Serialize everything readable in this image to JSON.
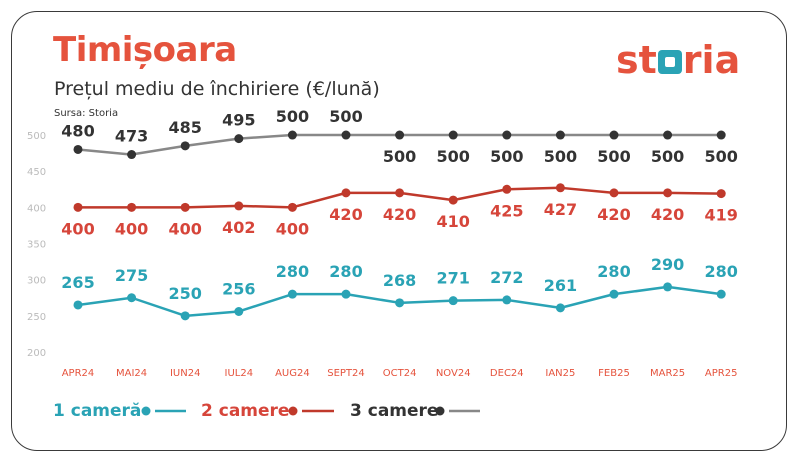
{
  "header": {
    "title": "Timișoara",
    "subtitle": "Prețul mediu de închiriere (€/lună)",
    "source": "Sursa: Storia",
    "logo_text_left": "st",
    "logo_text_right": "ria"
  },
  "colors": {
    "title": "#e5533d",
    "series_1": "#2aa3b5",
    "series_2": "#c0392b",
    "series_2_label": "#d6453a",
    "series_3": "#888888",
    "series_3_label": "#333333",
    "axis_text": "#bbbbbb",
    "category_text": "#e5533d"
  },
  "chart_data": {
    "type": "line",
    "categories": [
      "APR24",
      "MAI24",
      "IUN24",
      "IUL24",
      "AUG24",
      "SEPT24",
      "OCT24",
      "NOV24",
      "DEC24",
      "IAN25",
      "FEB25",
      "MAR25",
      "APR25"
    ],
    "ylim": [
      200,
      500
    ],
    "yticks": [
      "200",
      "250",
      "300",
      "350",
      "400",
      "450",
      "500"
    ],
    "grid": false,
    "legend_position": "bottom",
    "series": [
      {
        "name": "1 cameră",
        "values": [
          265,
          275,
          250,
          256,
          280,
          280,
          268,
          271,
          272,
          261,
          280,
          290,
          280
        ],
        "labels": [
          "265",
          "275",
          "250",
          "256",
          "280",
          "280",
          "268",
          "271",
          "272",
          "261",
          "280",
          "290",
          "280"
        ]
      },
      {
        "name": "2 camere",
        "values": [
          400,
          400,
          400,
          402,
          400,
          420,
          420,
          410,
          425,
          427,
          420,
          420,
          419
        ],
        "labels": [
          "400",
          "400",
          "400",
          "402",
          "400",
          "420",
          "420",
          "410",
          "425",
          "427",
          "420",
          "420",
          "419"
        ]
      },
      {
        "name": "3 camere",
        "values": [
          480,
          473,
          485,
          495,
          500,
          500,
          500,
          500,
          500,
          500,
          500,
          500,
          500
        ],
        "labels": [
          "480",
          "473",
          "485",
          "495",
          "500",
          "500",
          "500",
          "500",
          "500",
          "500",
          "500",
          "500",
          "500"
        ]
      }
    ]
  }
}
